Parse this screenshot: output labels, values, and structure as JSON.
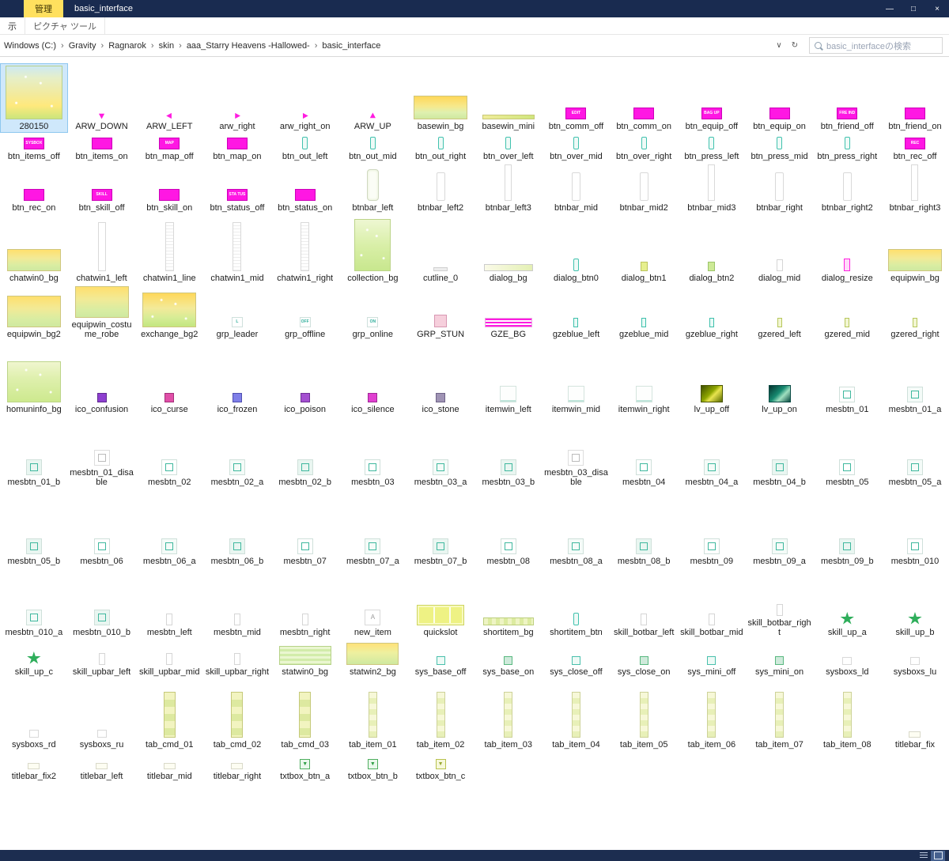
{
  "window": {
    "title": "basic_interface",
    "manage_tab": "管理",
    "controls": {
      "minimize": "—",
      "maximize": "□",
      "close": "×"
    }
  },
  "ribbon": {
    "view_tab": "示",
    "picture_tools_tab": "ピクチャ ツール"
  },
  "address": {
    "segments": [
      "Windows (C:)",
      "Gravity",
      "Ragnarok",
      "skin",
      "aaa_Starry Heavens -Hallowed-",
      "basic_interface"
    ],
    "separator": "›",
    "dropdown_icon": "∨",
    "refresh_icon": "↻"
  },
  "search": {
    "placeholder": "basic_interfaceの検索"
  },
  "files": {
    "rows": [
      [
        {
          "n": "280150",
          "k": "big spark",
          "s": true
        },
        {
          "n": "ARW_DOWN",
          "k": "arw arw-d"
        },
        {
          "n": "ARW_LEFT",
          "k": "arw arw-l"
        },
        {
          "n": "arw_right",
          "k": "arw arw-r"
        },
        {
          "n": "arw_right_on",
          "k": "arw arw-r"
        },
        {
          "n": "ARW_UP",
          "k": "arw arw-u"
        },
        {
          "n": "basewin_bg",
          "k": "gradA"
        },
        {
          "n": "basewin_mini",
          "k": "barthin"
        },
        {
          "n": "btn_comm_off",
          "k": "mag",
          "l": "EDIT"
        },
        {
          "n": "btn_comm_on",
          "k": "mag"
        },
        {
          "n": "btn_equip_off",
          "k": "mag",
          "l": "BAG UP"
        },
        {
          "n": "btn_equip_on",
          "k": "mag"
        },
        {
          "n": "btn_friend_off",
          "k": "mag",
          "l": "FRE IND"
        },
        {
          "n": "btn_friend_on",
          "k": "mag"
        }
      ],
      [
        {
          "n": "btn_items_off",
          "k": "mag",
          "l": "SYSBOX"
        },
        {
          "n": "btn_items_on",
          "k": "mag"
        },
        {
          "n": "btn_map_off",
          "k": "mag",
          "l": "MAP"
        },
        {
          "n": "btn_map_on",
          "k": "mag"
        },
        {
          "n": "btn_out_left",
          "k": "tealv"
        },
        {
          "n": "btn_out_mid",
          "k": "tealv"
        },
        {
          "n": "btn_out_right",
          "k": "tealv"
        },
        {
          "n": "btn_over_left",
          "k": "tealv"
        },
        {
          "n": "btn_over_mid",
          "k": "tealv"
        },
        {
          "n": "btn_over_right",
          "k": "tealv"
        },
        {
          "n": "btn_press_left",
          "k": "tealv"
        },
        {
          "n": "btn_press_mid",
          "k": "tealv"
        },
        {
          "n": "btn_press_right",
          "k": "tealv"
        },
        {
          "n": "btn_rec_off",
          "k": "mag",
          "l": "REC"
        }
      ],
      [
        {
          "n": "btn_rec_on",
          "k": "mag"
        },
        {
          "n": "btn_skill_off",
          "k": "mag",
          "l": "SKILL"
        },
        {
          "n": "btn_skill_on",
          "k": "mag"
        },
        {
          "n": "btn_status_off",
          "k": "mag",
          "l": "STA TUS"
        },
        {
          "n": "btn_status_on",
          "k": "mag"
        },
        {
          "n": "btnbar_left",
          "k": "btnbarL"
        },
        {
          "n": "btnbar_left2",
          "k": "stripM"
        },
        {
          "n": "btnbar_left3",
          "k": "stripM2"
        },
        {
          "n": "btnbar_mid",
          "k": "stripM"
        },
        {
          "n": "btnbar_mid2",
          "k": "stripM"
        },
        {
          "n": "btnbar_mid3",
          "k": "stripM2"
        },
        {
          "n": "btnbar_right",
          "k": "stripM"
        },
        {
          "n": "btnbar_right2",
          "k": "stripM"
        },
        {
          "n": "btnbar_right3",
          "k": "stripM2"
        }
      ],
      [
        {
          "n": "chatwin0_bg",
          "k": "gradB"
        },
        {
          "n": "chatwin1_left",
          "k": "stripL"
        },
        {
          "n": "chatwin1_line",
          "k": "stripLine"
        },
        {
          "n": "chatwin1_mid",
          "k": "stripLine"
        },
        {
          "n": "chatwin1_right",
          "k": "stripLine"
        },
        {
          "n": "collection_bg",
          "k": "coll spark"
        },
        {
          "n": "cutline_0",
          "k": "cut"
        },
        {
          "n": "dialog_bg",
          "k": "dlgbar"
        },
        {
          "n": "dialog_btn0",
          "k": "tealv"
        },
        {
          "n": "dialog_btn1",
          "k": "dlg1"
        },
        {
          "n": "dialog_btn2",
          "k": "dlg2"
        },
        {
          "n": "dialog_mid",
          "k": "stripS"
        },
        {
          "n": "dialog_resize",
          "k": "resize"
        },
        {
          "n": "equipwin_bg",
          "k": "gradB"
        }
      ],
      [
        {
          "n": "equipwin_bg2",
          "k": "gradC"
        },
        {
          "n": "equipwin_costume_robe",
          "k": "gradC"
        },
        {
          "n": "exchange_bg2",
          "k": "gradD spark"
        },
        {
          "n": "grp_leader",
          "k": "grp",
          "l": "L"
        },
        {
          "n": "grp_offline",
          "k": "grp",
          "l": "OFF"
        },
        {
          "n": "grp_online",
          "k": "grp",
          "l": "ON"
        },
        {
          "n": "GRP_STUN",
          "k": "stun"
        },
        {
          "n": "GZE_BG",
          "k": "gze"
        },
        {
          "n": "gzeblue_left",
          "k": "gzeB"
        },
        {
          "n": "gzeblue_mid",
          "k": "gzeB"
        },
        {
          "n": "gzeblue_right",
          "k": "gzeB"
        },
        {
          "n": "gzered_left",
          "k": "gzeR"
        },
        {
          "n": "gzered_mid",
          "k": "gzeR"
        },
        {
          "n": "gzered_right",
          "k": "gzeR"
        }
      ],
      [
        {
          "n": "homuninfo_bg",
          "k": "gradE spark"
        },
        {
          "n": "ico_confusion",
          "k": "ico ico-confusion"
        },
        {
          "n": "ico_curse",
          "k": "ico ico-curse"
        },
        {
          "n": "ico_frozen",
          "k": "ico ico-frozen"
        },
        {
          "n": "ico_poison",
          "k": "ico ico-poison"
        },
        {
          "n": "ico_silence",
          "k": "ico ico-silence"
        },
        {
          "n": "ico_stone",
          "k": "ico ico-stone"
        },
        {
          "n": "itemwin_left",
          "k": "itemwin"
        },
        {
          "n": "itemwin_mid",
          "k": "itemwin"
        },
        {
          "n": "itemwin_right",
          "k": "itemwin"
        },
        {
          "n": "lv_up_off",
          "k": "lvoff"
        },
        {
          "n": "lv_up_on",
          "k": "lvon"
        },
        {
          "n": "mesbtn_01",
          "k": "mes"
        },
        {
          "n": "mesbtn_01_a",
          "k": "mesA"
        }
      ],
      [
        {
          "n": "mesbtn_01_b",
          "k": "mesB"
        },
        {
          "n": "mesbtn_01_disable",
          "k": "mesDis"
        },
        {
          "n": "mesbtn_02",
          "k": "mes"
        },
        {
          "n": "mesbtn_02_a",
          "k": "mesA"
        },
        {
          "n": "mesbtn_02_b",
          "k": "mesB"
        },
        {
          "n": "mesbtn_03",
          "k": "mes"
        },
        {
          "n": "mesbtn_03_a",
          "k": "mesA"
        },
        {
          "n": "mesbtn_03_b",
          "k": "mesB"
        },
        {
          "n": "mesbtn_03_disable",
          "k": "mesDis"
        },
        {
          "n": "mesbtn_04",
          "k": "mes"
        },
        {
          "n": "mesbtn_04_a",
          "k": "mesA"
        },
        {
          "n": "mesbtn_04_b",
          "k": "mesB"
        },
        {
          "n": "mesbtn_05",
          "k": "mes"
        },
        {
          "n": "mesbtn_05_a",
          "k": "mesA"
        }
      ],
      [
        {
          "n": "mesbtn_05_b",
          "k": "mesB"
        },
        {
          "n": "mesbtn_06",
          "k": "mes"
        },
        {
          "n": "mesbtn_06_a",
          "k": "mesA"
        },
        {
          "n": "mesbtn_06_b",
          "k": "mesB"
        },
        {
          "n": "mesbtn_07",
          "k": "mes"
        },
        {
          "n": "mesbtn_07_a",
          "k": "mesA"
        },
        {
          "n": "mesbtn_07_b",
          "k": "mesB"
        },
        {
          "n": "mesbtn_08",
          "k": "mes"
        },
        {
          "n": "mesbtn_08_a",
          "k": "mesA"
        },
        {
          "n": "mesbtn_08_b",
          "k": "mesB"
        },
        {
          "n": "mesbtn_09",
          "k": "mes"
        },
        {
          "n": "mesbtn_09_a",
          "k": "mesA"
        },
        {
          "n": "mesbtn_09_b",
          "k": "mesB"
        },
        {
          "n": "mesbtn_010",
          "k": "mes"
        }
      ],
      [
        {
          "n": "mesbtn_010_a",
          "k": "mesA"
        },
        {
          "n": "mesbtn_010_b",
          "k": "mesB"
        },
        {
          "n": "mesbtn_left",
          "k": "stripS"
        },
        {
          "n": "mesbtn_mid",
          "k": "stripS"
        },
        {
          "n": "mesbtn_right",
          "k": "stripS"
        },
        {
          "n": "new_item",
          "k": "newitem",
          "l": "A"
        },
        {
          "n": "quickslot",
          "k": "quick"
        },
        {
          "n": "shortitem_bg",
          "k": "shortbg"
        },
        {
          "n": "shortitem_btn",
          "k": "tealv"
        },
        {
          "n": "skill_botbar_left",
          "k": "stripS"
        },
        {
          "n": "skill_botbar_mid",
          "k": "stripS"
        },
        {
          "n": "skill_botbar_right",
          "k": "stripS"
        },
        {
          "n": "skill_up_a",
          "k": "star"
        },
        {
          "n": "skill_up_b",
          "k": "star"
        }
      ],
      [
        {
          "n": "skill_up_c",
          "k": "star"
        },
        {
          "n": "skill_upbar_left",
          "k": "stripS"
        },
        {
          "n": "skill_upbar_mid",
          "k": "stripS"
        },
        {
          "n": "skill_upbar_right",
          "k": "stripS"
        },
        {
          "n": "statwin0_bg",
          "k": "statlines"
        },
        {
          "n": "statwin2_bg",
          "k": "gradF"
        },
        {
          "n": "sys_base_off",
          "k": "sysoff"
        },
        {
          "n": "sys_base_on",
          "k": "syson"
        },
        {
          "n": "sys_close_off",
          "k": "sysoff"
        },
        {
          "n": "sys_close_on",
          "k": "syson"
        },
        {
          "n": "sys_mini_off",
          "k": "sysoff"
        },
        {
          "n": "sys_mini_on",
          "k": "syson"
        },
        {
          "n": "sysboxs_ld",
          "k": "corner"
        },
        {
          "n": "sysboxs_lu",
          "k": "corner"
        }
      ],
      [
        {
          "n": "sysboxs_rd",
          "k": "corner"
        },
        {
          "n": "sysboxs_ru",
          "k": "corner"
        },
        {
          "n": "tab_cmd_01",
          "k": "tabcmd"
        },
        {
          "n": "tab_cmd_02",
          "k": "tabcmd"
        },
        {
          "n": "tab_cmd_03",
          "k": "tabcmd"
        },
        {
          "n": "tab_item_01",
          "k": "tabitem"
        },
        {
          "n": "tab_item_02",
          "k": "tabitem"
        },
        {
          "n": "tab_item_03",
          "k": "tabitem"
        },
        {
          "n": "tab_item_04",
          "k": "tabitem"
        },
        {
          "n": "tab_item_05",
          "k": "tabitem"
        },
        {
          "n": "tab_item_06",
          "k": "tabitem"
        },
        {
          "n": "tab_item_07",
          "k": "tabitem"
        },
        {
          "n": "tab_item_08",
          "k": "tabitem"
        },
        {
          "n": "titlebar_fix",
          "k": "tbar"
        }
      ],
      [
        {
          "n": "titlebar_fix2",
          "k": "tbar"
        },
        {
          "n": "titlebar_left",
          "k": "tbar"
        },
        {
          "n": "titlebar_mid",
          "k": "tbar"
        },
        {
          "n": "titlebar_right",
          "k": "tbar"
        },
        {
          "n": "txtbox_btn_a",
          "k": "txtA",
          "l": "▼"
        },
        {
          "n": "txtbox_btn_b",
          "k": "txtA",
          "l": "▼"
        },
        {
          "n": "txtbox_btn_c",
          "k": "txtC",
          "l": "▼"
        }
      ]
    ]
  }
}
